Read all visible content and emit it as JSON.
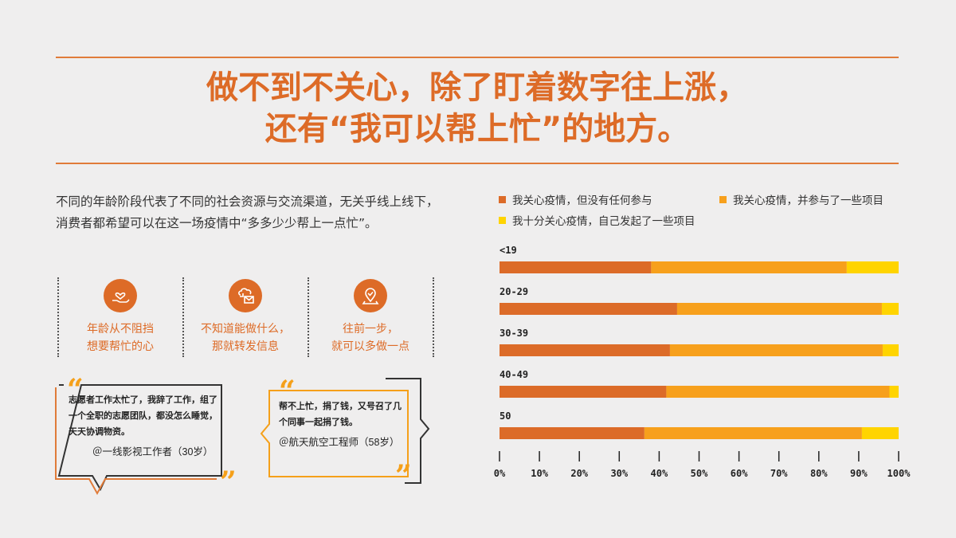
{
  "headline": {
    "line1": "做不到不关心，除了盯着数字往上涨，",
    "line2": "还有“我可以帮上忙”的地方。"
  },
  "intro": "不同的年龄阶段代表了不同的社会资源与交流渠道，无关乎线上线下，消费者都希望可以在这一场疫情中“多多少少帮上一点忙”。",
  "columns": [
    {
      "icon": "hand-heart-icon",
      "line1": "年龄从不阻挡",
      "line2": "想要帮忙的心"
    },
    {
      "icon": "forward-message-icon",
      "line1": "不知道能做什么，",
      "line2": "那就转发信息"
    },
    {
      "icon": "location-pin-icon",
      "line1": "往前一步，",
      "line2": "就可以多做一点"
    }
  ],
  "quotes": [
    {
      "text": "志愿者工作太忙了，我辞了工作，组了一个全职的志愿团队，都没怎么睡觉，天天协调物资。",
      "author": "＠一线影视工作者（30岁）"
    },
    {
      "text": "帮不上忙，捐了钱，又号召了几个同事一起捐了钱。",
      "author": "＠航天航空工程师（58岁）"
    }
  ],
  "colors": {
    "accent": "#dd6b27",
    "s1": "#dc6b28",
    "s2": "#f7a01c",
    "s3": "#ffd400"
  },
  "chart_data": {
    "type": "bar",
    "orientation": "horizontal",
    "stacked": true,
    "categories": [
      "<19",
      "20-29",
      "30-39",
      "40-49",
      "50"
    ],
    "series": [
      {
        "name": "我关心疫情，但没有任何参与",
        "values": [
          38,
          44.5,
          42.7,
          41.8,
          36.3
        ]
      },
      {
        "name": "我关心疫情，并参与了一些项目",
        "values": [
          49,
          51.3,
          53.3,
          55.9,
          54.5
        ]
      },
      {
        "name": "我十分关心疫情，自己发起了一些项目",
        "values": [
          13,
          4.2,
          4.0,
          2.3,
          9.2
        ]
      }
    ],
    "xlim": [
      0,
      100
    ],
    "ticks": [
      "0%",
      "10%",
      "20%",
      "30%",
      "40%",
      "50%",
      "60%",
      "70%",
      "80%",
      "90%",
      "100%"
    ],
    "legend_position": "top"
  }
}
